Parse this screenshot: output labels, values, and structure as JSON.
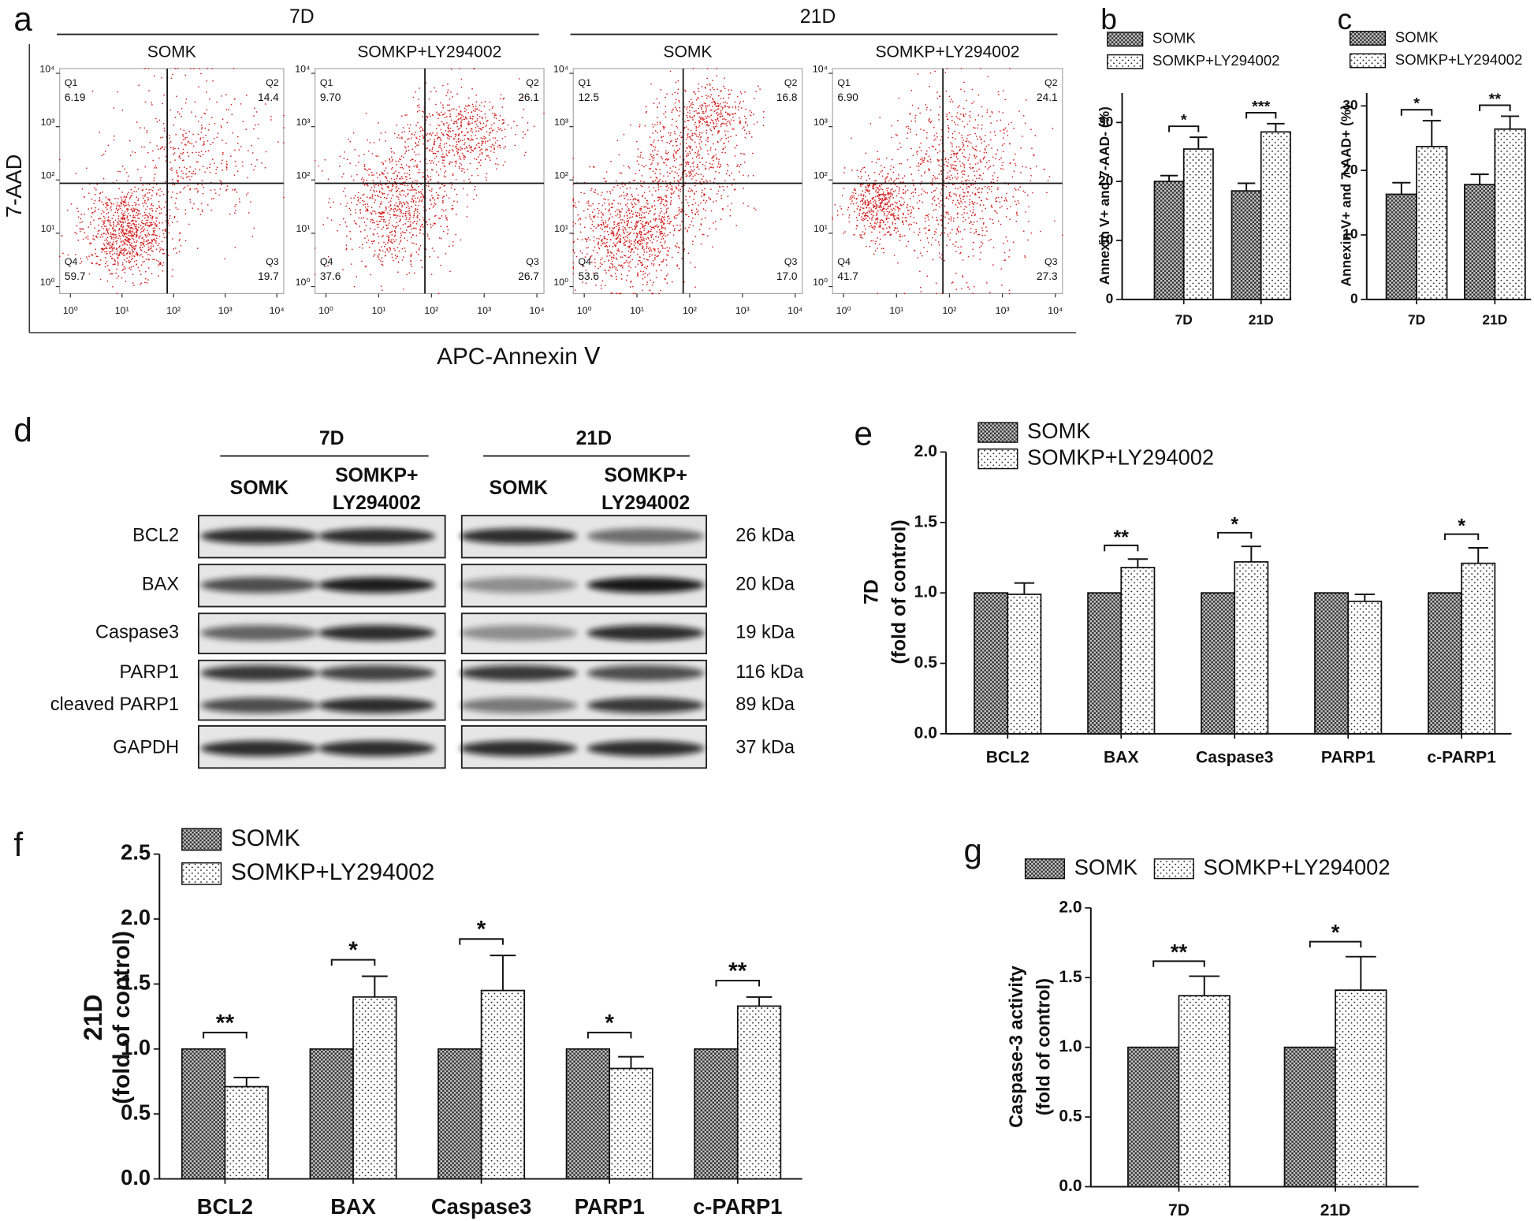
{
  "chart_data": [
    {
      "type": "flow",
      "panel": "a",
      "xlabel": "APC-Annexin Ⅴ",
      "ylabel": "7-AAD",
      "xscale": "log",
      "yscale": "log",
      "xlim": [
        0.62,
        13600
      ],
      "ylim": [
        0.74,
        12300
      ],
      "xticks": [
        {
          "value": 1,
          "label": "10⁰"
        },
        {
          "value": 10,
          "label": "10¹"
        },
        {
          "value": 100,
          "label": "10²"
        },
        {
          "value": 1000,
          "label": "10³"
        },
        {
          "value": 10000,
          "label": "10⁴"
        }
      ],
      "yticks": [
        {
          "value": 1,
          "label": "10⁰"
        },
        {
          "value": 10,
          "label": "10¹"
        },
        {
          "value": 100,
          "label": "10²"
        },
        {
          "value": 1000,
          "label": "10³"
        },
        {
          "value": 10000,
          "label": "10⁴"
        }
      ],
      "quadrant_names": [
        "Q1",
        "Q2",
        "Q3",
        "Q4"
      ],
      "groups": [
        {
          "name": "7D",
          "plots": [
            {
              "title": "SOMK",
              "values": [
                6.19,
                14.4,
                19.7,
                59.7
              ],
              "value_labels": [
                "6.19",
                "14.4",
                "19.7",
                "59.7"
              ]
            },
            {
              "title": "SOMKP+LY294002",
              "values": [
                9.7,
                26.1,
                26.7,
                37.6
              ],
              "value_labels": [
                "9.70",
                "26.1",
                "26.7",
                "37.6"
              ]
            }
          ]
        },
        {
          "name": "21D",
          "plots": [
            {
              "title": "SOMK",
              "values": [
                12.5,
                16.8,
                17.0,
                53.6
              ],
              "value_labels": [
                "12.5",
                "16.8",
                "17.0",
                "53.6"
              ]
            },
            {
              "title": "SOMKP+LY294002",
              "values": [
                6.9,
                24.1,
                27.3,
                41.7
              ],
              "value_labels": [
                "6.90",
                "24.1",
                "27.3",
                "41.7"
              ]
            }
          ]
        }
      ]
    },
    {
      "type": "bar",
      "panel": "b",
      "ylabel": [
        "Annexin V+ and 7-AAD- (%)"
      ],
      "categories": [
        "7D",
        "21D"
      ],
      "series": [
        {
          "name": "SOMK",
          "color": "#333333",
          "pattern": "checker",
          "values": [
            20,
            18.4
          ],
          "errors": [
            1,
            1.3
          ]
        },
        {
          "name": "SOMKP+LY294002",
          "color": "#ffffff",
          "pattern": "dots",
          "values": [
            25.5,
            28.4
          ],
          "errors": [
            2,
            1.4
          ]
        }
      ],
      "significance": [
        "*",
        "***"
      ],
      "ylim": [
        0,
        35
      ],
      "yticks": [
        0,
        10,
        20,
        30
      ]
    },
    {
      "type": "bar",
      "panel": "c",
      "ylabel": [
        "Annexin V+ and 7-AAD+ (%)"
      ],
      "categories": [
        "7D",
        "21D"
      ],
      "series": [
        {
          "name": "SOMK",
          "color": "#333333",
          "pattern": "checker",
          "values": [
            16.3,
            17.8
          ],
          "errors": [
            1.8,
            1.6
          ]
        },
        {
          "name": "SOMKP+LY294002",
          "color": "#ffffff",
          "pattern": "dots",
          "values": [
            23.7,
            26.4
          ],
          "errors": [
            4,
            2
          ]
        }
      ],
      "significance": [
        "*",
        "**"
      ],
      "ylim": [
        0,
        32
      ],
      "yticks": [
        0,
        10,
        20,
        30
      ]
    },
    {
      "type": "blot",
      "panel": "d",
      "groups": [
        {
          "name": "7D",
          "lanes": [
            [
              "SOMK"
            ],
            [
              "SOMKP+",
              "LY294002"
            ]
          ]
        },
        {
          "name": "21D",
          "lanes": [
            [
              "SOMK"
            ],
            [
              "SOMKP+",
              "LY294002"
            ]
          ]
        }
      ],
      "proteins": [
        "BCL2",
        "BAX",
        "Caspase3",
        "PARP1",
        "cleaved PARP1",
        "GAPDH"
      ],
      "sizes": [
        "26 kDa",
        "20 kDa",
        "19 kDa",
        "116 kDa",
        "89 kDa",
        "37 kDa"
      ]
    },
    {
      "type": "bar",
      "panel": "e",
      "ylabel": [
        "7D",
        "(fold of control)"
      ],
      "categories": [
        "BCL2",
        "BAX",
        "Caspase3",
        "PARP1",
        "c-PARP1"
      ],
      "series": [
        {
          "name": "SOMK",
          "color": "#333333",
          "pattern": "checker",
          "values": [
            1,
            1,
            1,
            1,
            1
          ]
        },
        {
          "name": "SOMKP+LY294002",
          "color": "#ffffff",
          "pattern": "dots",
          "values": [
            0.99,
            1.18,
            1.22,
            0.94,
            1.21
          ],
          "errors": [
            0.08,
            0.06,
            0.11,
            0.05,
            0.11
          ]
        }
      ],
      "significance": [
        null,
        "**",
        "*",
        null,
        "*"
      ],
      "ylim": [
        0,
        2
      ],
      "yticks": [
        {
          "value": 0,
          "label": "0.0"
        },
        0.5,
        {
          "value": 1,
          "label": "1.0"
        },
        1.5,
        {
          "value": 2,
          "label": "2.0"
        }
      ]
    },
    {
      "type": "bar",
      "panel": "f",
      "ylabel": [
        "21D",
        "(fold of control)"
      ],
      "categories": [
        "BCL2",
        "BAX",
        "Caspase3",
        "PARP1",
        "c-PARP1"
      ],
      "series": [
        {
          "name": "SOMK",
          "color": "#333333",
          "pattern": "checker",
          "values": [
            1,
            1,
            1,
            1,
            1
          ]
        },
        {
          "name": "SOMKP+LY294002",
          "color": "#ffffff",
          "pattern": "dots",
          "values": [
            0.71,
            1.4,
            1.45,
            0.85,
            1.33
          ],
          "errors": [
            0.07,
            0.16,
            0.27,
            0.09,
            0.07
          ]
        }
      ],
      "significance": [
        "**",
        "*",
        "*",
        "*",
        "**"
      ],
      "ylim": [
        0,
        2.5
      ],
      "yticks": [
        {
          "value": 0,
          "label": "0.0"
        },
        0.5,
        {
          "value": 1,
          "label": "1.0"
        },
        1.5,
        {
          "value": 2,
          "label": "2.0"
        },
        2.5
      ]
    },
    {
      "type": "bar",
      "panel": "g",
      "ylabel": [
        "Caspase-3 activity",
        "(fold of control)"
      ],
      "categories": [
        "7D",
        "21D"
      ],
      "series": [
        {
          "name": "SOMK",
          "color": "#333333",
          "pattern": "checker",
          "values": [
            1,
            1
          ]
        },
        {
          "name": "SOMKP+LY294002",
          "color": "#ffffff",
          "pattern": "dots",
          "values": [
            1.37,
            1.41
          ],
          "errors": [
            0.14,
            0.24
          ]
        }
      ],
      "significance": [
        "**",
        "*"
      ],
      "ylim": [
        0,
        2
      ],
      "yticks": [
        {
          "value": 0,
          "label": "0.0"
        },
        0.5,
        {
          "value": 1,
          "label": "1.0"
        },
        1.5,
        {
          "value": 2,
          "label": "2.0"
        }
      ]
    }
  ]
}
